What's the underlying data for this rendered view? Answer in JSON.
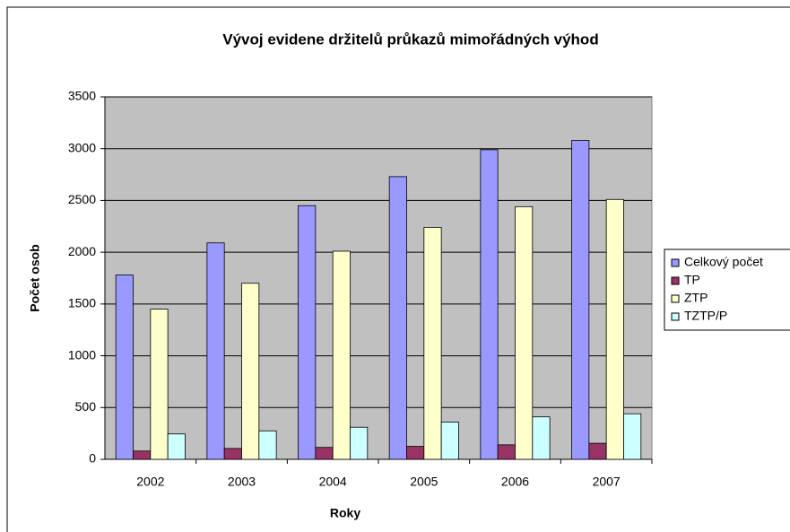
{
  "chart_data": {
    "type": "bar",
    "title": "Vývoj evidene držitelů průkazů mimořádných výhod",
    "x_label": "Roky",
    "y_label": "Počet osob",
    "categories": [
      "2002",
      "2003",
      "2004",
      "2005",
      "2006",
      "2007"
    ],
    "series": [
      {
        "name": "Celkový počet",
        "color": "#9999ff",
        "values": [
          1780,
          2090,
          2450,
          2730,
          2990,
          3080
        ]
      },
      {
        "name": "TP",
        "color": "#993366",
        "values": [
          80,
          105,
          115,
          125,
          140,
          155
        ]
      },
      {
        "name": "ZTP",
        "color": "#ffffcc",
        "values": [
          1450,
          1700,
          2010,
          2240,
          2440,
          2510
        ]
      },
      {
        "name": "TZTP/P",
        "color": "#ccffff",
        "values": [
          245,
          275,
          310,
          360,
          410,
          440
        ]
      }
    ],
    "ylim": [
      0,
      3500
    ],
    "yticks": [
      0,
      500,
      1000,
      1500,
      2000,
      2500,
      3000,
      3500
    ],
    "grid": true,
    "legend": "right"
  }
}
